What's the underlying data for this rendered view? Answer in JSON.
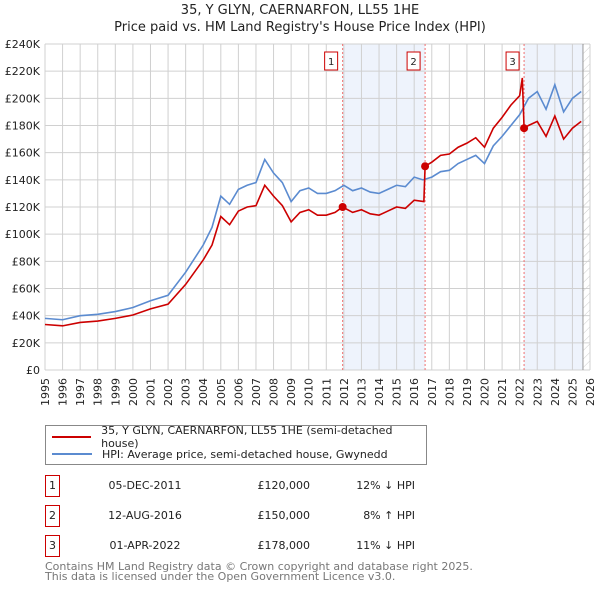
{
  "title": "35, Y GLYN, CAERNARFON, LL55 1HE",
  "subtitle": "Price paid vs. HM Land Registry's House Price Index (HPI)",
  "chart_data": {
    "type": "line",
    "title": "35, Y GLYN, CAERNARFON, LL55 1HE",
    "subtitle": "Price paid vs. HM Land Registry's House Price Index (HPI)",
    "xlim": [
      1995,
      2026
    ],
    "ylim": [
      0,
      240000
    ],
    "x_ticks": [
      "1995",
      "1996",
      "1997",
      "1998",
      "1999",
      "2000",
      "2001",
      "2002",
      "2003",
      "2004",
      "2005",
      "2006",
      "2007",
      "2008",
      "2009",
      "2010",
      "2011",
      "2012",
      "2013",
      "2014",
      "2015",
      "2016",
      "2017",
      "2018",
      "2019",
      "2020",
      "2021",
      "2022",
      "2023",
      "2024",
      "2025",
      "2026"
    ],
    "y_ticks": [
      {
        "v": 0,
        "label": "£0"
      },
      {
        "v": 20000,
        "label": "£20K"
      },
      {
        "v": 40000,
        "label": "£40K"
      },
      {
        "v": 60000,
        "label": "£60K"
      },
      {
        "v": 80000,
        "label": "£80K"
      },
      {
        "v": 100000,
        "label": "£100K"
      },
      {
        "v": 120000,
        "label": "£120K"
      },
      {
        "v": 140000,
        "label": "£140K"
      },
      {
        "v": 160000,
        "label": "£160K"
      },
      {
        "v": 180000,
        "label": "£180K"
      },
      {
        "v": 200000,
        "label": "£200K"
      },
      {
        "v": 220000,
        "label": "£220K"
      },
      {
        "v": 240000,
        "label": "£240K"
      }
    ],
    "grid": true,
    "series": [
      {
        "name": "35, Y GLYN, CAERNARFON, LL55 1HE (semi-detached house)",
        "color": "#cc0000",
        "x": [
          1995,
          1996,
          1997,
          1998,
          1999,
          2000,
          2001,
          2002,
          2003,
          2004,
          2004.5,
          2005,
          2005.5,
          2006,
          2006.5,
          2007,
          2007.5,
          2008,
          2008.5,
          2009,
          2009.5,
          2010,
          2010.5,
          2011,
          2011.5,
          2011.93,
          2012.5,
          2013,
          2013.5,
          2014,
          2014.5,
          2015,
          2015.5,
          2016,
          2016.55,
          2016.62,
          2017,
          2017.5,
          2018,
          2018.5,
          2019,
          2019.5,
          2020,
          2020.5,
          2021,
          2021.5,
          2022,
          2022.15,
          2022.25,
          2022.5,
          2023,
          2023.5,
          2024,
          2024.5,
          2025,
          2025.5
        ],
        "y": [
          33500,
          32500,
          35000,
          36000,
          38000,
          40500,
          45000,
          48500,
          63000,
          81000,
          92000,
          113000,
          107000,
          117000,
          120000,
          121000,
          136000,
          128000,
          121000,
          109000,
          116000,
          118000,
          114000,
          114000,
          116000,
          120000,
          116000,
          118000,
          115000,
          114000,
          117000,
          120000,
          119000,
          125000,
          124000,
          150000,
          153000,
          158000,
          159000,
          164000,
          167000,
          171000,
          164000,
          178000,
          186000,
          195000,
          202000,
          215000,
          178000,
          180000,
          183000,
          172000,
          187000,
          170000,
          178000,
          183000
        ]
      },
      {
        "name": "HPI: Average price, semi-detached house, Gwynedd",
        "color": "#5b8bd0",
        "x": [
          1995,
          1996,
          1997,
          1998,
          1999,
          2000,
          2001,
          2002,
          2003,
          2004,
          2004.5,
          2005,
          2005.5,
          2006,
          2006.5,
          2007,
          2007.5,
          2008,
          2008.5,
          2009,
          2009.5,
          2010,
          2010.5,
          2011,
          2011.5,
          2012,
          2012.5,
          2013,
          2013.5,
          2014,
          2014.5,
          2015,
          2015.5,
          2016,
          2016.5,
          2017,
          2017.5,
          2018,
          2018.5,
          2019,
          2019.5,
          2020,
          2020.5,
          2021,
          2021.5,
          2022,
          2022.5,
          2023,
          2023.5,
          2024,
          2024.5,
          2025,
          2025.5
        ],
        "y": [
          38000,
          37000,
          40000,
          41000,
          43000,
          46000,
          51000,
          55000,
          72000,
          92000,
          105000,
          128000,
          122000,
          133000,
          136000,
          138000,
          155000,
          145000,
          138000,
          124000,
          132000,
          134000,
          130000,
          130000,
          132000,
          136000,
          132000,
          134000,
          131000,
          130000,
          133000,
          136000,
          135000,
          142000,
          140000,
          142000,
          146000,
          147000,
          152000,
          155000,
          158000,
          152000,
          165000,
          172000,
          180000,
          188000,
          200000,
          205000,
          192000,
          210000,
          190000,
          200000,
          205000
        ]
      }
    ],
    "sales": [
      {
        "label": "1",
        "x": 2011.93,
        "y": 120000
      },
      {
        "label": "2",
        "x": 2016.62,
        "y": 150000
      },
      {
        "label": "3",
        "x": 2022.25,
        "y": 178000
      }
    ],
    "shaded_ranges": [
      [
        2011.93,
        2016.62
      ],
      [
        2022.25,
        2025.6
      ]
    ],
    "forecast_hatch_from": 2025.6
  },
  "legend": [
    {
      "label": "35, Y GLYN, CAERNARFON, LL55 1HE (semi-detached house)",
      "color": "#cc0000"
    },
    {
      "label": "HPI: Average price, semi-detached house, Gwynedd",
      "color": "#5b8bd0"
    }
  ],
  "transactions": [
    {
      "num": "1",
      "date": "05-DEC-2011",
      "price": "£120,000",
      "hpi": "12% ↓ HPI"
    },
    {
      "num": "2",
      "date": "12-AUG-2016",
      "price": "£150,000",
      "hpi": "8% ↑ HPI"
    },
    {
      "num": "3",
      "date": "01-APR-2022",
      "price": "£178,000",
      "hpi": "11% ↓ HPI"
    }
  ],
  "footer": [
    "Contains HM Land Registry data © Crown copyright and database right 2025.",
    "This data is licensed under the Open Government Licence v3.0."
  ]
}
